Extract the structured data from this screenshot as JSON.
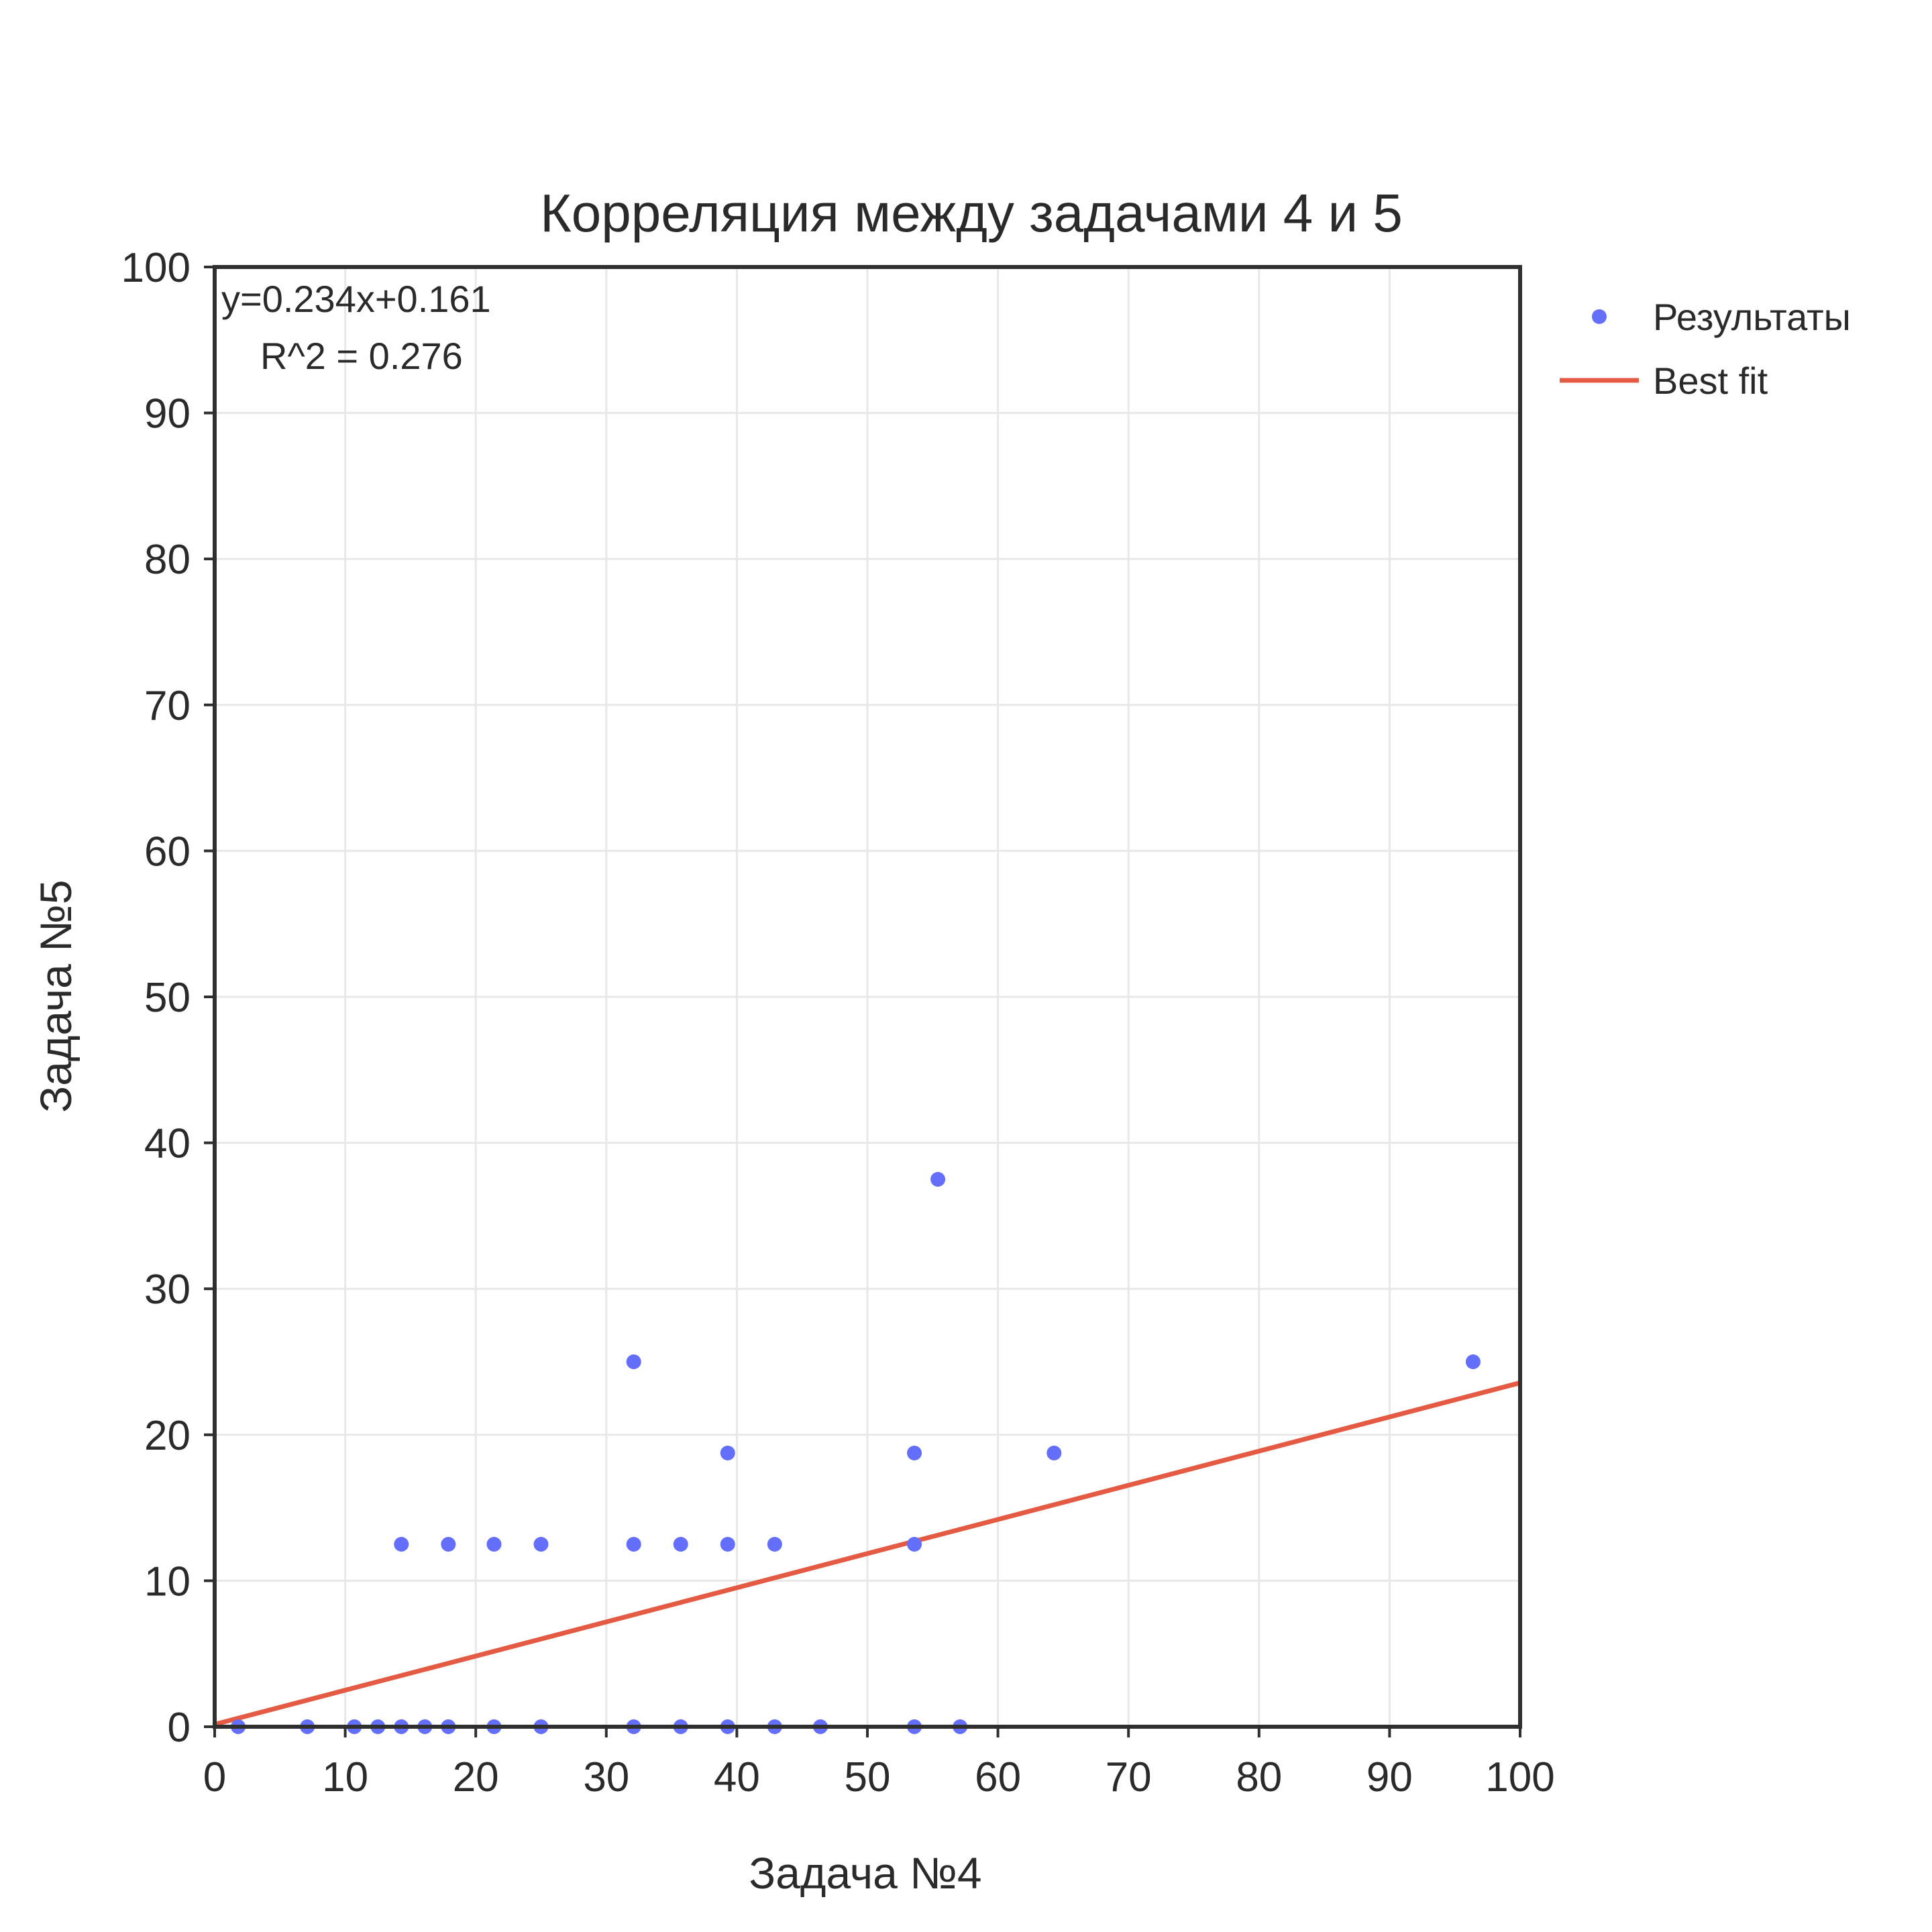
{
  "chart_data": {
    "type": "scatter",
    "title": "Корреляция между задачами 4 и 5",
    "xlabel": "Задача №4",
    "ylabel": "Задача №5",
    "xlim": [
      0,
      100
    ],
    "ylim": [
      0,
      100
    ],
    "xticks": [
      0,
      10,
      20,
      30,
      40,
      50,
      60,
      70,
      80,
      90,
      100
    ],
    "yticks": [
      0,
      10,
      20,
      30,
      40,
      50,
      60,
      70,
      80,
      90,
      100
    ],
    "grid": true,
    "legend_position": "top-right, outside plot",
    "annotation": {
      "equation": "y=0.234x+0.161",
      "r2": "R^2 = 0.276"
    },
    "series": [
      {
        "name": "Результаты",
        "kind": "markers",
        "color": "#636efa",
        "points": [
          [
            1.8,
            0
          ],
          [
            7.1,
            0
          ],
          [
            10.7,
            0
          ],
          [
            12.5,
            0
          ],
          [
            14.3,
            0
          ],
          [
            16.1,
            0
          ],
          [
            17.9,
            0
          ],
          [
            21.4,
            0
          ],
          [
            25.0,
            0
          ],
          [
            32.1,
            0
          ],
          [
            35.7,
            0
          ],
          [
            39.3,
            0
          ],
          [
            42.9,
            0
          ],
          [
            46.4,
            0
          ],
          [
            53.6,
            0
          ],
          [
            57.1,
            0
          ],
          [
            14.3,
            12.5
          ],
          [
            17.9,
            12.5
          ],
          [
            21.4,
            12.5
          ],
          [
            25.0,
            12.5
          ],
          [
            32.1,
            12.5
          ],
          [
            35.7,
            12.5
          ],
          [
            39.3,
            12.5
          ],
          [
            42.9,
            12.5
          ],
          [
            53.6,
            12.5
          ],
          [
            39.3,
            18.75
          ],
          [
            53.6,
            18.75
          ],
          [
            64.3,
            18.75
          ],
          [
            32.1,
            25
          ],
          [
            96.4,
            25
          ],
          [
            55.4,
            37.5
          ]
        ]
      },
      {
        "name": "Best fit",
        "kind": "line",
        "color": "#e45a42",
        "points": [
          [
            0,
            0.161
          ],
          [
            100,
            23.561
          ]
        ]
      }
    ]
  }
}
